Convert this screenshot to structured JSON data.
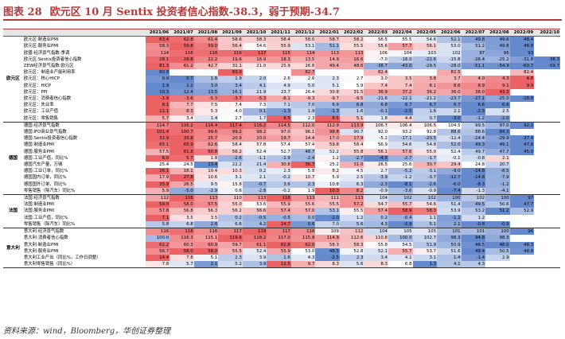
{
  "title": {
    "number": "图表 28",
    "text": "欧元区 10 月 Sentix 投资者信心指数-38.3，弱于预期-34.7"
  },
  "source": "资料来源：wind，Bloomberg，华创证券整理",
  "colors": {
    "title": "#b43b3b",
    "heat_high": "#e8464a",
    "heat_mid": "#ffffff",
    "heat_low": "#4a74c4"
  },
  "table": {
    "columns": [
      "2021/06",
      "2021/07",
      "2021/08",
      "2021/09",
      "2021/10",
      "2021/11",
      "2021/12",
      "2022/01",
      "2022/02",
      "2022/03",
      "2022/04",
      "2022/05",
      "2022/06",
      "2022/07",
      "2022/08",
      "2022/09",
      "2022/10"
    ],
    "groups": [
      {
        "region": "欧元区",
        "rows": [
          {
            "label": "欧元区:制造业PMI",
            "values": [
              "63.4",
              "62.8",
              "61.4",
              "58.6",
              "58.3",
              "58.4",
              "58.0",
              "58.7",
              "58.2",
              "56.5",
              "55.5",
              "54.6",
              "52.1",
              "49.8",
              "49.6",
              "48.4",
              ""
            ]
          },
          {
            "label": "欧元区:服务业PMI",
            "values": [
              "58.3",
              "59.8",
              "59.0",
              "56.4",
              "54.6",
              "55.9",
              "53.1",
              "51.1",
              "55.5",
              "55.6",
              "57.7",
              "56.1",
              "53.0",
              "51.2",
              "49.8",
              "48.8",
              ""
            ]
          },
          {
            "label": "欧盟:经济景气指数:季调",
            "values": [
              "114",
              "116",
              "116",
              "116",
              "117",
              "115",
              "114",
              "113",
              "113",
              "106",
              "104",
              "103",
              "102",
              "97",
              "96",
              "93",
              ""
            ]
          },
          {
            "label": "欧元区:Sentix投资者信心指数",
            "values": [
              "28.1",
              "29.8",
              "22.2",
              "19.6",
              "16.9",
              "18.3",
              "13.5",
              "14.9",
              "16.6",
              "-7.0",
              "-18.0",
              "-22.6",
              "-15.8",
              "-26.4",
              "-25.2",
              "-31.8",
              "-38.3"
            ]
          },
          {
            "label": "ZEW经济景气指数:欧元区",
            "values": [
              "81.3",
              "61.2",
              "42.7",
              "31.1",
              "21.0",
              "25.9",
              "26.8",
              "49.4",
              "48.6",
              "-38.7",
              "-43.0",
              "-29.5",
              "-28.0",
              "-51.1",
              "-54.9",
              "-60.7",
              "-59.7"
            ]
          },
          {
            "label": "欧元区：制造业产能利用率",
            "values": [
              "80.8",
              "",
              "",
              "83.0",
              "",
              "",
              "82.7",
              "",
              "",
              "82.4",
              "",
              "",
              "82.5",
              "",
              "",
              "82.4",
              ""
            ]
          },
          {
            "label": "欧元区：核心HICP",
            "values": [
              "0.9",
              "0.7",
              "1.6",
              "1.9",
              "2.0",
              "2.6",
              "2.6",
              "2.3",
              "2.7",
              "3.0",
              "3.5",
              "3.8",
              "3.7",
              "4.0",
              "4.3",
              "4.8",
              ""
            ]
          },
          {
            "label": "欧元区：HICP",
            "values": [
              "1.9",
              "2.2",
              "3.0",
              "3.4",
              "4.1",
              "4.9",
              "5.0",
              "5.1",
              "5.9",
              "7.4",
              "7.4",
              "8.1",
              "8.6",
              "8.9",
              "9.1",
              "9.9",
              ""
            ]
          },
          {
            "label": "欧元区：PPI",
            "values": [
              "10.3",
              "12.4",
              "13.5",
              "16.1",
              "21.9",
              "23.7",
              "26.4",
              "30.8",
              "31.5",
              "36.9",
              "37.2",
              "36.2",
              "36.0",
              "38.0",
              "43.3",
              "",
              ""
            ]
          },
          {
            "label": "欧元区：消费者信心指数",
            "values": [
              "-1.9",
              "-3.6",
              "-5.3",
              "-3.7",
              "-5.3",
              "-8.1",
              "-9.3",
              "-9.7",
              "-9.5",
              "-21.6",
              "-22.1",
              "-21.2",
              "-23.7",
              "-27.1",
              "-25.0",
              "-28.8",
              ""
            ]
          },
          {
            "label": "欧元区：失业率",
            "values": [
              "8.1",
              "7.7",
              "7.5",
              "7.4",
              "7.3",
              "7.1",
              "7.0",
              "6.9",
              "6.8",
              "6.8",
              "6.7",
              "6.7",
              "6.7",
              "6.6",
              "6.6",
              "",
              ""
            ]
          },
          {
            "label": "欧元区：工业产值",
            "values": [
              "11.1",
              "8.3",
              "5.3",
              "4.0",
              "0.1",
              "-1.3",
              "1.9",
              "-1.3",
              "1.6",
              "-0.1",
              "-2.5",
              "1.6",
              "2.1",
              "-2.5",
              "2.5",
              "",
              ""
            ]
          },
          {
            "label": "欧元区：零售销售",
            "values": [
              "5.7",
              "3.4",
              "1.4",
              "2.7",
              "1.7",
              "8.5",
              "2.3",
              "8.5",
              "5.1",
              "1.8",
              "4.4",
              "0.7",
              "-3.0",
              "-1.2",
              "-2.0",
              "",
              ""
            ]
          }
        ]
      },
      {
        "region": "德国",
        "rows": [
          {
            "label": "德国:经济景气指数",
            "values": [
              "114.7",
              "116.2",
              "116.4",
              "117.4",
              "116.2",
              "114.5",
              "112.0",
              "112.9",
              "113.9",
              "106.7",
              "106.4",
              "106.5",
              "104.5",
              "99.5",
              "97.0",
              "92.2",
              ""
            ]
          },
          {
            "label": "德国:IFO商业景气指数",
            "values": [
              "101.4",
              "100.7",
              "99.6",
              "99.2",
              "98.2",
              "97.0",
              "96.1",
              "98.8",
              "90.7",
              "92.0",
              "93.2",
              "92.8",
              "88.6",
              "88.6",
              "84.3",
              "",
              ""
            ]
          },
          {
            "label": "德国:Sentix投资者信心指数",
            "values": [
              "32.9",
              "33.8",
              "25.7",
              "20.9",
              "20.0",
              "19.7",
              "14.4",
              "17.0",
              "17.9",
              "-5.2",
              "-17.1",
              "-20.5",
              "-12.4",
              "-24.4",
              "-29.9",
              "-37.4",
              ""
            ]
          },
          {
            "label": "德国:制造业PMI",
            "values": [
              "65.1",
              "65.9",
              "62.6",
              "58.4",
              "57.8",
              "57.4",
              "57.4",
              "59.8",
              "58.4",
              "56.9",
              "54.6",
              "54.8",
              "52.0",
              "49.3",
              "49.1",
              "47.8",
              ""
            ]
          },
          {
            "label": "德国:服务业PMI",
            "values": [
              "57.5",
              "61.8",
              "60.8",
              "56.2",
              "52.4",
              "52.7",
              "48.7",
              "52.2",
              "55.8",
              "56.1",
              "57.6",
              "55.0",
              "52.4",
              "49.7",
              "47.7",
              "45.0",
              ""
            ]
          },
          {
            "label": "德国:工业产值，同比%",
            "values": [
              "6.0",
              "5.7",
              "1.8",
              "-2.6",
              "-1.1",
              "-1.9",
              "-2.4",
              "1.2",
              "-2.7",
              "-4.5",
              "-2.7",
              "-1.7",
              "-0.1",
              "-0.8",
              "2.1",
              "",
              ""
            ]
          },
          {
            "label": "德国汽车产量，万辆",
            "values": [
              "25.4",
              "24.5",
              "13.4",
              "22.2",
              "21.4",
              "30.8",
              "36.7",
              "25.2",
              "31.0",
              "26.5",
              "25.6",
              "30.7",
              "29.4",
              "24.8",
              "20.7",
              "",
              ""
            ]
          },
          {
            "label": "德国:工业订单，同比%",
            "values": [
              "26.1",
              "16.1",
              "10.4",
              "10.3",
              "0.2",
              "2.3",
              "5.8",
              "8.2",
              "4.5",
              "2.7",
              "-5.2",
              "-3.1",
              "-9.0",
              "-14.8",
              "-8.5",
              "",
              ""
            ]
          },
          {
            "label": "德国国内订单，同比%",
            "values": [
              "17.9",
              "27.8",
              "10.6",
              "3.1",
              "2.1",
              "-0.2",
              "10.7",
              "5.9",
              "2.5",
              "-3.9",
              "-1.2",
              "-3.7",
              "-12.7",
              "-14.8",
              "-7.9",
              "",
              ""
            ]
          },
          {
            "label": "德国国外订单，同比%",
            "values": [
              "35.9",
              "26.5",
              "9.5",
              "15.8",
              "-0.7",
              "3.6",
              "2.3",
              "10.8",
              "6.3",
              "-2.3",
              "-8.1",
              "-2.6",
              "-6.0",
              "-8.3",
              "-1.2",
              "",
              ""
            ]
          },
          {
            "label": "零售销售（除汽车）同比%",
            "values": [
              "5.9",
              "-5.0",
              "-2.9",
              "0.6",
              "-2.8",
              "-0.2",
              "1.9",
              "10.3",
              "8.2",
              "-0.9",
              "-3.6",
              "-0.9",
              "-7.4",
              "-1.3",
              "-4.1",
              "",
              ""
            ]
          }
        ]
      },
      {
        "region": "法国",
        "rows": [
          {
            "label": "法国:经济景气指数",
            "values": [
              "112",
              "116",
              "113",
              "110",
              "113",
              "116",
              "113",
              "111",
              "113",
              "104",
              "102",
              "102",
              "100",
              "102",
              "100",
              "97",
              ""
            ]
          },
          {
            "label": "法国:制造业PMI",
            "values": [
              "59.0",
              "58.0",
              "57.5",
              "55.0",
              "53.6",
              "55.9",
              "55.6",
              "55.5",
              "57.2",
              "54.7",
              "55.7",
              "54.6",
              "51.4",
              "49.5",
              "50.6",
              "47.7",
              ""
            ]
          },
          {
            "label": "法国:服务业PMI",
            "values": [
              "57.8",
              "56.8",
              "56.3",
              "56.2",
              "56.6",
              "57.4",
              "57.0",
              "53.1",
              "55.5",
              "57.4",
              "58.9",
              "58.3",
              "53.9",
              "53.2",
              "51.2",
              "52.9",
              ""
            ]
          },
          {
            "label": "法国:工业产值，同比%",
            "values": [
              "7.1",
              "3.5",
              "3.5",
              "0.2",
              "-0.5",
              "-0.5",
              "0.0",
              "-2.0",
              "1.2",
              "0.2",
              "-0.4",
              "1.1",
              "-1.2",
              "1.2",
              "",
              "",
              ""
            ]
          },
          {
            "label": "零售销售（除汽车）同比%",
            "values": [
              "5.8",
              "6.8",
              "2.6",
              "6.6",
              "4.2",
              "24.7",
              "0.6",
              "7.0",
              "5.6",
              "4.3",
              "-0.9",
              "5.1",
              "2.1",
              "-0.8",
              "-0.9",
              "",
              ""
            ]
          }
        ]
      },
      {
        "region": "意大利",
        "rows": [
          {
            "label": "意大利:经济景气指数",
            "values": [
              "116",
              "118",
              "116",
              "117",
              "119",
              "117",
              "116",
              "109",
              "112",
              "104",
              "105",
              "105",
              "101",
              "101",
              "100",
              "96",
              ""
            ]
          },
          {
            "label": "意大利:消费者信心指数",
            "values": [
              "100.0",
              "116.3",
              "115.1",
              "119.6",
              "118.2",
              "117.0",
              "115.8",
              "114.9",
              "112.6",
              "110.8",
              "100.0",
              "102.7",
              "98.3",
              "94.8",
              "98.3",
              "",
              ""
            ]
          },
          {
            "label": "意大利:制造业PMI",
            "values": [
              "62.2",
              "60.3",
              "60.9",
              "59.7",
              "61.1",
              "62.8",
              "62.0",
              "58.3",
              "58.3",
              "55.8",
              "54.5",
              "51.9",
              "50.9",
              "48.5",
              "48.0",
              "48.3",
              ""
            ]
          },
          {
            "label": "意大利:服务业PMI",
            "values": [
              "56.7",
              "58.0",
              "58.0",
              "55.5",
              "52.4",
              "55.9",
              "53.0",
              "48.5",
              "52.8",
              "52.1",
              "55.7",
              "53.7",
              "51.6",
              "48.4",
              "50.5",
              "48.8",
              ""
            ]
          },
          {
            "label": "意大利工业产出（同比%，工作日调整）",
            "values": [
              "14.4",
              "7.8",
              "5.1",
              "2.3",
              "3.9",
              "1.6",
              "4.3",
              "-2.5",
              "2.3",
              "3.4",
              "4.1",
              "3.1",
              "1.4",
              "-1.4",
              "2.9",
              "",
              ""
            ]
          },
          {
            "label": "意大利零售销售（同比%）",
            "values": [
              "7.8",
              "5.7",
              "2.1",
              "5.2",
              "3.9",
              "12.5",
              "9.7",
              "8.3",
              "5.6",
              "8.3",
              "6.8",
              "1.3",
              "4.1",
              "4.3",
              "",
              "",
              ""
            ]
          }
        ]
      }
    ]
  }
}
